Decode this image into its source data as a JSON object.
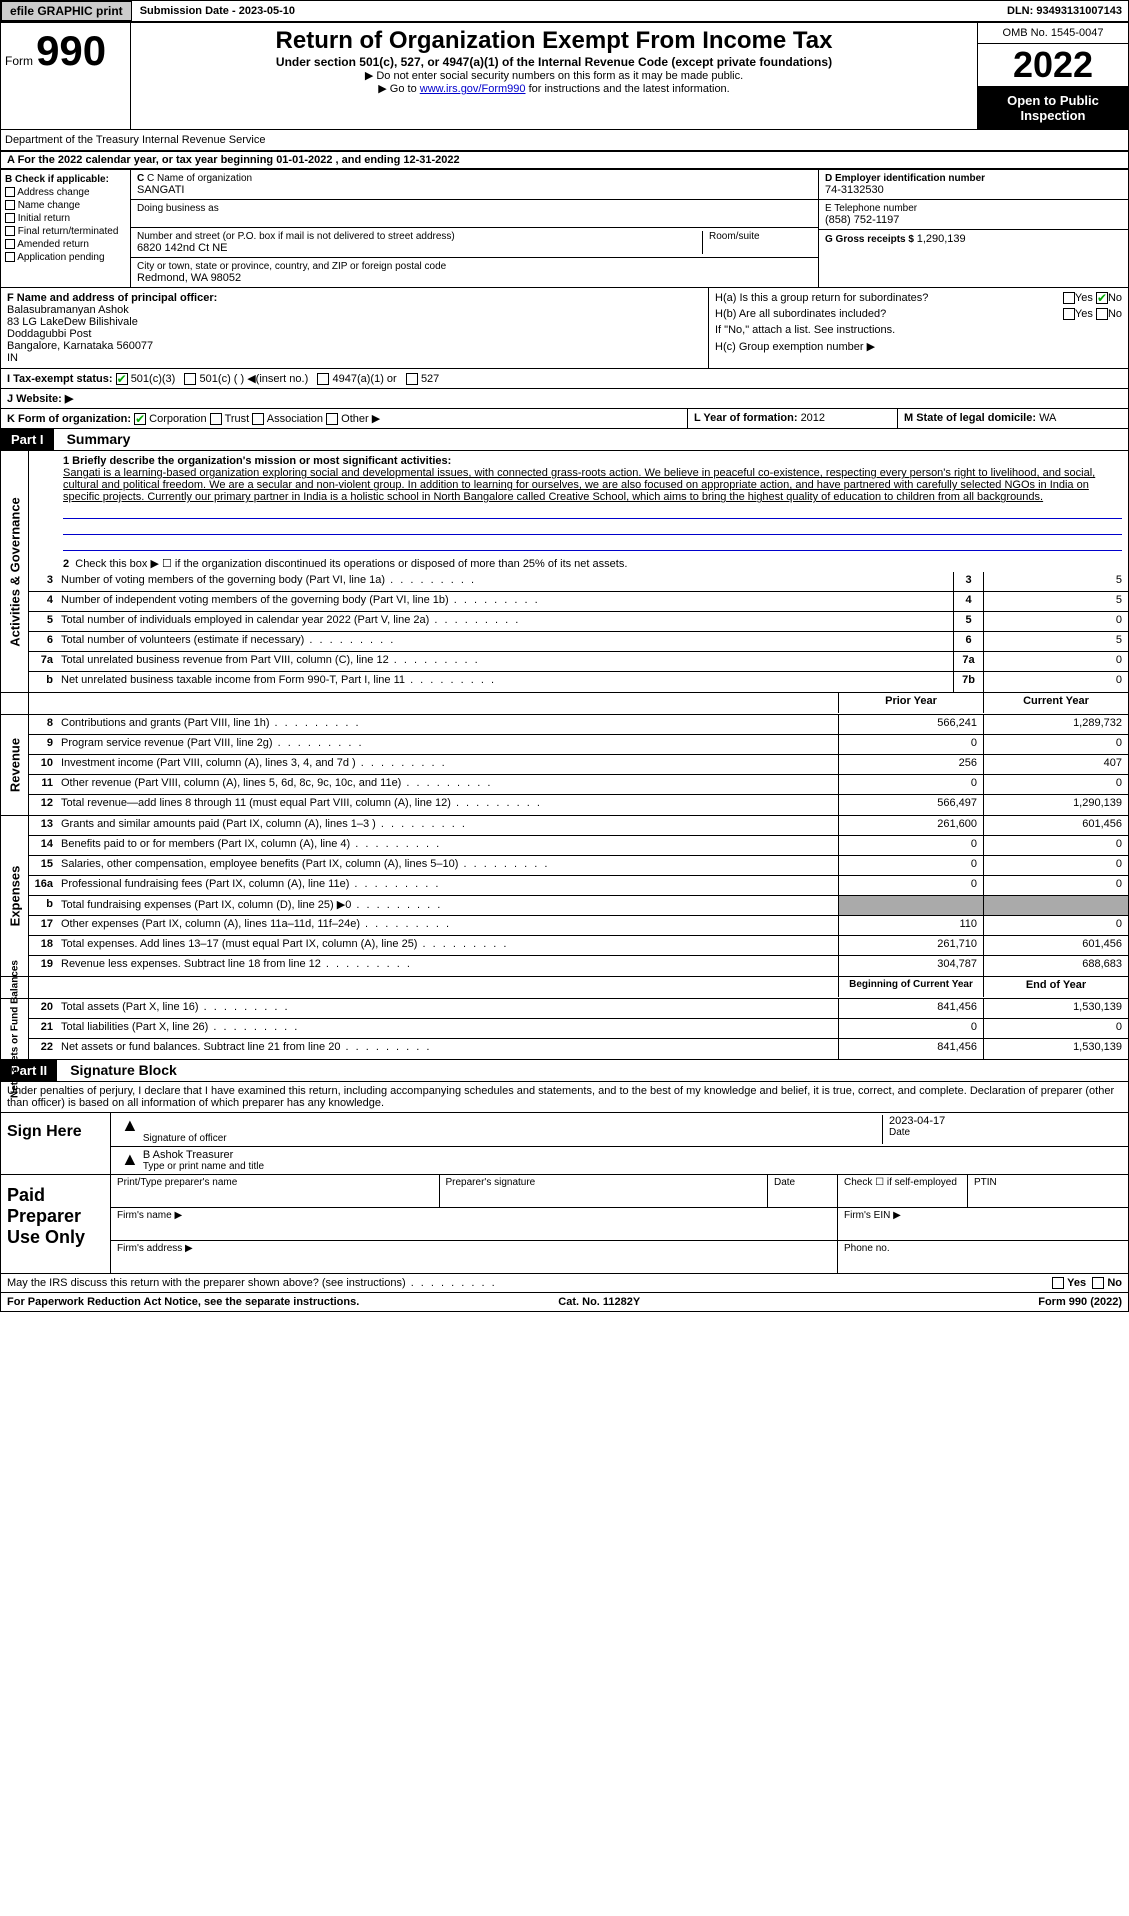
{
  "topbar": {
    "efile": "efile GRAPHIC print",
    "submission_label": "Submission Date - ",
    "submission_date": "2023-05-10",
    "dln_label": "DLN: ",
    "dln": "93493131007143"
  },
  "header": {
    "form_label": "Form",
    "form_num": "990",
    "title": "Return of Organization Exempt From Income Tax",
    "subtitle": "Under section 501(c), 527, or 4947(a)(1) of the Internal Revenue Code (except private foundations)",
    "note1": "▶ Do not enter social security numbers on this form as it may be made public.",
    "note2_pre": "▶ Go to ",
    "note2_link": "www.irs.gov/Form990",
    "note2_post": " for instructions and the latest information.",
    "omb": "OMB No. 1545-0047",
    "year": "2022",
    "open_public": "Open to Public Inspection",
    "dept": "Department of the Treasury Internal Revenue Service"
  },
  "section_a": "A For the 2022 calendar year, or tax year beginning 01-01-2022   , and ending 12-31-2022",
  "col_b": {
    "label": "B Check if applicable:",
    "addr": "Address change",
    "name": "Name change",
    "initial": "Initial return",
    "final": "Final return/terminated",
    "amended": "Amended return",
    "app": "Application pending"
  },
  "col_c": {
    "name_label": "C Name of organization",
    "name": "SANGATI",
    "dba_label": "Doing business as",
    "dba": "",
    "street_label": "Number and street (or P.O. box if mail is not delivered to street address)",
    "street": "6820 142nd Ct NE",
    "room_label": "Room/suite",
    "room": "",
    "city_label": "City or town, state or province, country, and ZIP or foreign postal code",
    "city": "Redmond, WA  98052"
  },
  "col_d": {
    "label": "D Employer identification number",
    "value": "74-3132530"
  },
  "col_e": {
    "label": "E Telephone number",
    "value": "(858) 752-1197"
  },
  "col_g": {
    "label": "G Gross receipts $ ",
    "value": "1,290,139"
  },
  "col_f": {
    "label": "F  Name and address of principal officer:",
    "l1": "Balasubramanyan Ashok",
    "l2": "83 LG LakeDew Bilishivale",
    "l3": "Doddagubbi Post",
    "l4": "Bangalore, Karnataka  560077",
    "l5": "IN"
  },
  "col_h": {
    "ha": "H(a)  Is this a group return for subordinates?",
    "hb": "H(b)  Are all subordinates included?",
    "hb_note": "If \"No,\" attach a list. See instructions.",
    "hc": "H(c)  Group exemption number ▶",
    "yes": "Yes",
    "no": "No"
  },
  "row_i": {
    "label": "I   Tax-exempt status:",
    "o1": "501(c)(3)",
    "o2": "501(c) (  ) ◀(insert no.)",
    "o3": "4947(a)(1) or",
    "o4": "527"
  },
  "row_j": {
    "label": "J   Website: ▶",
    "value": ""
  },
  "row_k": {
    "label": "K Form of organization:",
    "corp": "Corporation",
    "trust": "Trust",
    "assoc": "Association",
    "other": "Other ▶"
  },
  "row_l": {
    "label": "L  Year of formation: ",
    "value": "2012"
  },
  "row_m": {
    "label": "M  State of legal domicile: ",
    "value": "WA"
  },
  "part1": {
    "hdr": "Part I",
    "title": "Summary",
    "l1_label": "1  Briefly describe the organization's mission or most significant activities:",
    "l1_text": "Sangati is a learning-based organization exploring social and developmental issues, with connected grass-roots action. We believe in peaceful co-existence, respecting every person's right to livelihood, and social, cultural and political freedom. We are a secular and non-violent group. In addition to learning for ourselves, we are also focused on appropriate action, and have partnered with carefully selected NGOs in India on specific projects. Currently our primary partner in India is a holistic school in North Bangalore called Creative School, which aims to bring the highest quality of education to children from all backgrounds.",
    "l2": "Check this box ▶ ☐  if the organization discontinued its operations or disposed of more than 25% of its net assets.",
    "sidebar_ag": "Activities & Governance",
    "sidebar_rev": "Revenue",
    "sidebar_exp": "Expenses",
    "sidebar_na": "Net Assets or Fund Balances"
  },
  "gov_lines": [
    {
      "n": "3",
      "t": "Number of voting members of the governing body (Part VI, line 1a)",
      "box": "3",
      "v": "5"
    },
    {
      "n": "4",
      "t": "Number of independent voting members of the governing body (Part VI, line 1b)",
      "box": "4",
      "v": "5"
    },
    {
      "n": "5",
      "t": "Total number of individuals employed in calendar year 2022 (Part V, line 2a)",
      "box": "5",
      "v": "0"
    },
    {
      "n": "6",
      "t": "Total number of volunteers (estimate if necessary)",
      "box": "6",
      "v": "5"
    },
    {
      "n": "7a",
      "t": "Total unrelated business revenue from Part VIII, column (C), line 12",
      "box": "7a",
      "v": "0"
    },
    {
      "n": "b",
      "t": "Net unrelated business taxable income from Form 990-T, Part I, line 11",
      "box": "7b",
      "v": "0"
    }
  ],
  "col_headers": {
    "prior": "Prior Year",
    "current": "Current Year",
    "boy": "Beginning of Current Year",
    "eoy": "End of Year"
  },
  "rev_lines": [
    {
      "n": "8",
      "t": "Contributions and grants (Part VIII, line 1h)",
      "p": "566,241",
      "c": "1,289,732"
    },
    {
      "n": "9",
      "t": "Program service revenue (Part VIII, line 2g)",
      "p": "0",
      "c": "0"
    },
    {
      "n": "10",
      "t": "Investment income (Part VIII, column (A), lines 3, 4, and 7d )",
      "p": "256",
      "c": "407"
    },
    {
      "n": "11",
      "t": "Other revenue (Part VIII, column (A), lines 5, 6d, 8c, 9c, 10c, and 11e)",
      "p": "0",
      "c": "0"
    },
    {
      "n": "12",
      "t": "Total revenue—add lines 8 through 11 (must equal Part VIII, column (A), line 12)",
      "p": "566,497",
      "c": "1,290,139"
    }
  ],
  "exp_lines": [
    {
      "n": "13",
      "t": "Grants and similar amounts paid (Part IX, column (A), lines 1–3 )",
      "p": "261,600",
      "c": "601,456"
    },
    {
      "n": "14",
      "t": "Benefits paid to or for members (Part IX, column (A), line 4)",
      "p": "0",
      "c": "0"
    },
    {
      "n": "15",
      "t": "Salaries, other compensation, employee benefits (Part IX, column (A), lines 5–10)",
      "p": "0",
      "c": "0"
    },
    {
      "n": "16a",
      "t": "Professional fundraising fees (Part IX, column (A), line 11e)",
      "p": "0",
      "c": "0"
    },
    {
      "n": "b",
      "t": "Total fundraising expenses (Part IX, column (D), line 25) ▶0",
      "p": "shaded",
      "c": "shaded"
    },
    {
      "n": "17",
      "t": "Other expenses (Part IX, column (A), lines 11a–11d, 11f–24e)",
      "p": "110",
      "c": "0"
    },
    {
      "n": "18",
      "t": "Total expenses. Add lines 13–17 (must equal Part IX, column (A), line 25)",
      "p": "261,710",
      "c": "601,456"
    },
    {
      "n": "19",
      "t": "Revenue less expenses. Subtract line 18 from line 12",
      "p": "304,787",
      "c": "688,683"
    }
  ],
  "na_lines": [
    {
      "n": "20",
      "t": "Total assets (Part X, line 16)",
      "p": "841,456",
      "c": "1,530,139"
    },
    {
      "n": "21",
      "t": "Total liabilities (Part X, line 26)",
      "p": "0",
      "c": "0"
    },
    {
      "n": "22",
      "t": "Net assets or fund balances. Subtract line 21 from line 20",
      "p": "841,456",
      "c": "1,530,139"
    }
  ],
  "part2": {
    "hdr": "Part II",
    "title": "Signature Block",
    "penalty": "Under penalties of perjury, I declare that I have examined this return, including accompanying schedules and statements, and to the best of my knowledge and belief, it is true, correct, and complete. Declaration of preparer (other than officer) is based on all information of which preparer has any knowledge.",
    "sign_here": "Sign Here",
    "sig_officer": "Signature of officer",
    "sig_date": "2023-04-17",
    "date_label": "Date",
    "name_title": "B Ashok  Treasurer",
    "type_name": "Type or print name and title",
    "paid_prep": "Paid Preparer Use Only",
    "prep_name": "Print/Type preparer's name",
    "prep_sig": "Preparer's signature",
    "prep_date": "Date",
    "prep_check": "Check ☐ if self-employed",
    "ptin": "PTIN",
    "firm_name": "Firm's name  ▶",
    "firm_ein": "Firm's EIN ▶",
    "firm_addr": "Firm's address ▶",
    "phone": "Phone no.",
    "irs_discuss": "May the IRS discuss this return with the preparer shown above? (see instructions)"
  },
  "footer": {
    "left": "For Paperwork Reduction Act Notice, see the separate instructions.",
    "mid": "Cat. No. 11282Y",
    "right": "Form 990 (2022)"
  }
}
